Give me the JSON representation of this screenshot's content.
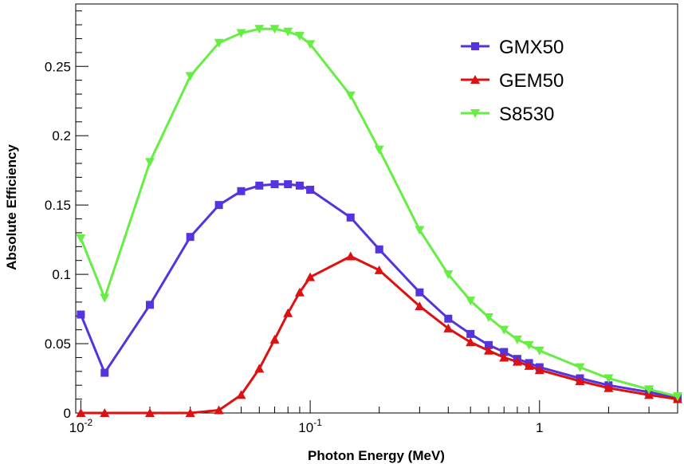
{
  "chart_data": {
    "type": "line",
    "title": "",
    "xlabel": "Photon Energy (MeV)",
    "ylabel": "Absolute Efficiency",
    "x_scale": "log",
    "xlim": [
      0.0095,
      4.0
    ],
    "ylim": [
      0,
      0.295
    ],
    "x_ticks": [
      {
        "value": 0.01,
        "base": "10",
        "exp": "-2"
      },
      {
        "value": 0.1,
        "base": "10",
        "exp": "-1"
      },
      {
        "value": 1,
        "base": "1",
        "exp": ""
      }
    ],
    "y_ticks": [
      {
        "value": 0,
        "label": "0"
      },
      {
        "value": 0.05,
        "label": "0.05"
      },
      {
        "value": 0.1,
        "label": "0.1"
      },
      {
        "value": 0.15,
        "label": "0.15"
      },
      {
        "value": 0.2,
        "label": "0.2"
      },
      {
        "value": 0.25,
        "label": "0.25"
      }
    ],
    "grid": false,
    "legend_position": "top-right",
    "series": [
      {
        "name": "GMX50",
        "color": "#5533dd",
        "marker": "square",
        "x": [
          0.01,
          0.0127,
          0.02,
          0.03,
          0.04,
          0.05,
          0.06,
          0.07,
          0.08,
          0.09,
          0.1,
          0.15,
          0.2,
          0.3,
          0.4,
          0.5,
          0.6,
          0.7,
          0.8,
          0.9,
          1.0,
          1.5,
          2.0,
          3.0,
          4.0
        ],
        "y": [
          0.071,
          0.029,
          0.078,
          0.127,
          0.15,
          0.16,
          0.164,
          0.165,
          0.165,
          0.164,
          0.161,
          0.141,
          0.118,
          0.087,
          0.068,
          0.057,
          0.049,
          0.044,
          0.039,
          0.036,
          0.033,
          0.025,
          0.02,
          0.015,
          0.011
        ]
      },
      {
        "name": "GEM50",
        "color": "#dd1111",
        "marker": "triangle-up",
        "x": [
          0.01,
          0.0127,
          0.02,
          0.03,
          0.04,
          0.05,
          0.06,
          0.07,
          0.08,
          0.09,
          0.1,
          0.15,
          0.2,
          0.3,
          0.4,
          0.5,
          0.6,
          0.7,
          0.8,
          0.9,
          1.0,
          1.5,
          2.0,
          3.0,
          4.0
        ],
        "y": [
          0.0,
          0.0,
          0.0,
          0.0,
          0.002,
          0.013,
          0.032,
          0.053,
          0.072,
          0.087,
          0.098,
          0.113,
          0.103,
          0.077,
          0.061,
          0.051,
          0.045,
          0.04,
          0.037,
          0.034,
          0.031,
          0.023,
          0.018,
          0.013,
          0.01
        ]
      },
      {
        "name": "S8530",
        "color": "#66ee44",
        "marker": "triangle-down",
        "x": [
          0.01,
          0.0127,
          0.02,
          0.03,
          0.04,
          0.05,
          0.06,
          0.07,
          0.08,
          0.09,
          0.1,
          0.15,
          0.2,
          0.3,
          0.4,
          0.5,
          0.6,
          0.7,
          0.8,
          0.9,
          1.0,
          1.5,
          2.0,
          3.0,
          4.0
        ],
        "y": [
          0.126,
          0.083,
          0.181,
          0.243,
          0.267,
          0.274,
          0.277,
          0.277,
          0.275,
          0.272,
          0.266,
          0.229,
          0.19,
          0.132,
          0.1,
          0.081,
          0.069,
          0.06,
          0.053,
          0.049,
          0.045,
          0.033,
          0.025,
          0.017,
          0.012
        ]
      }
    ]
  }
}
